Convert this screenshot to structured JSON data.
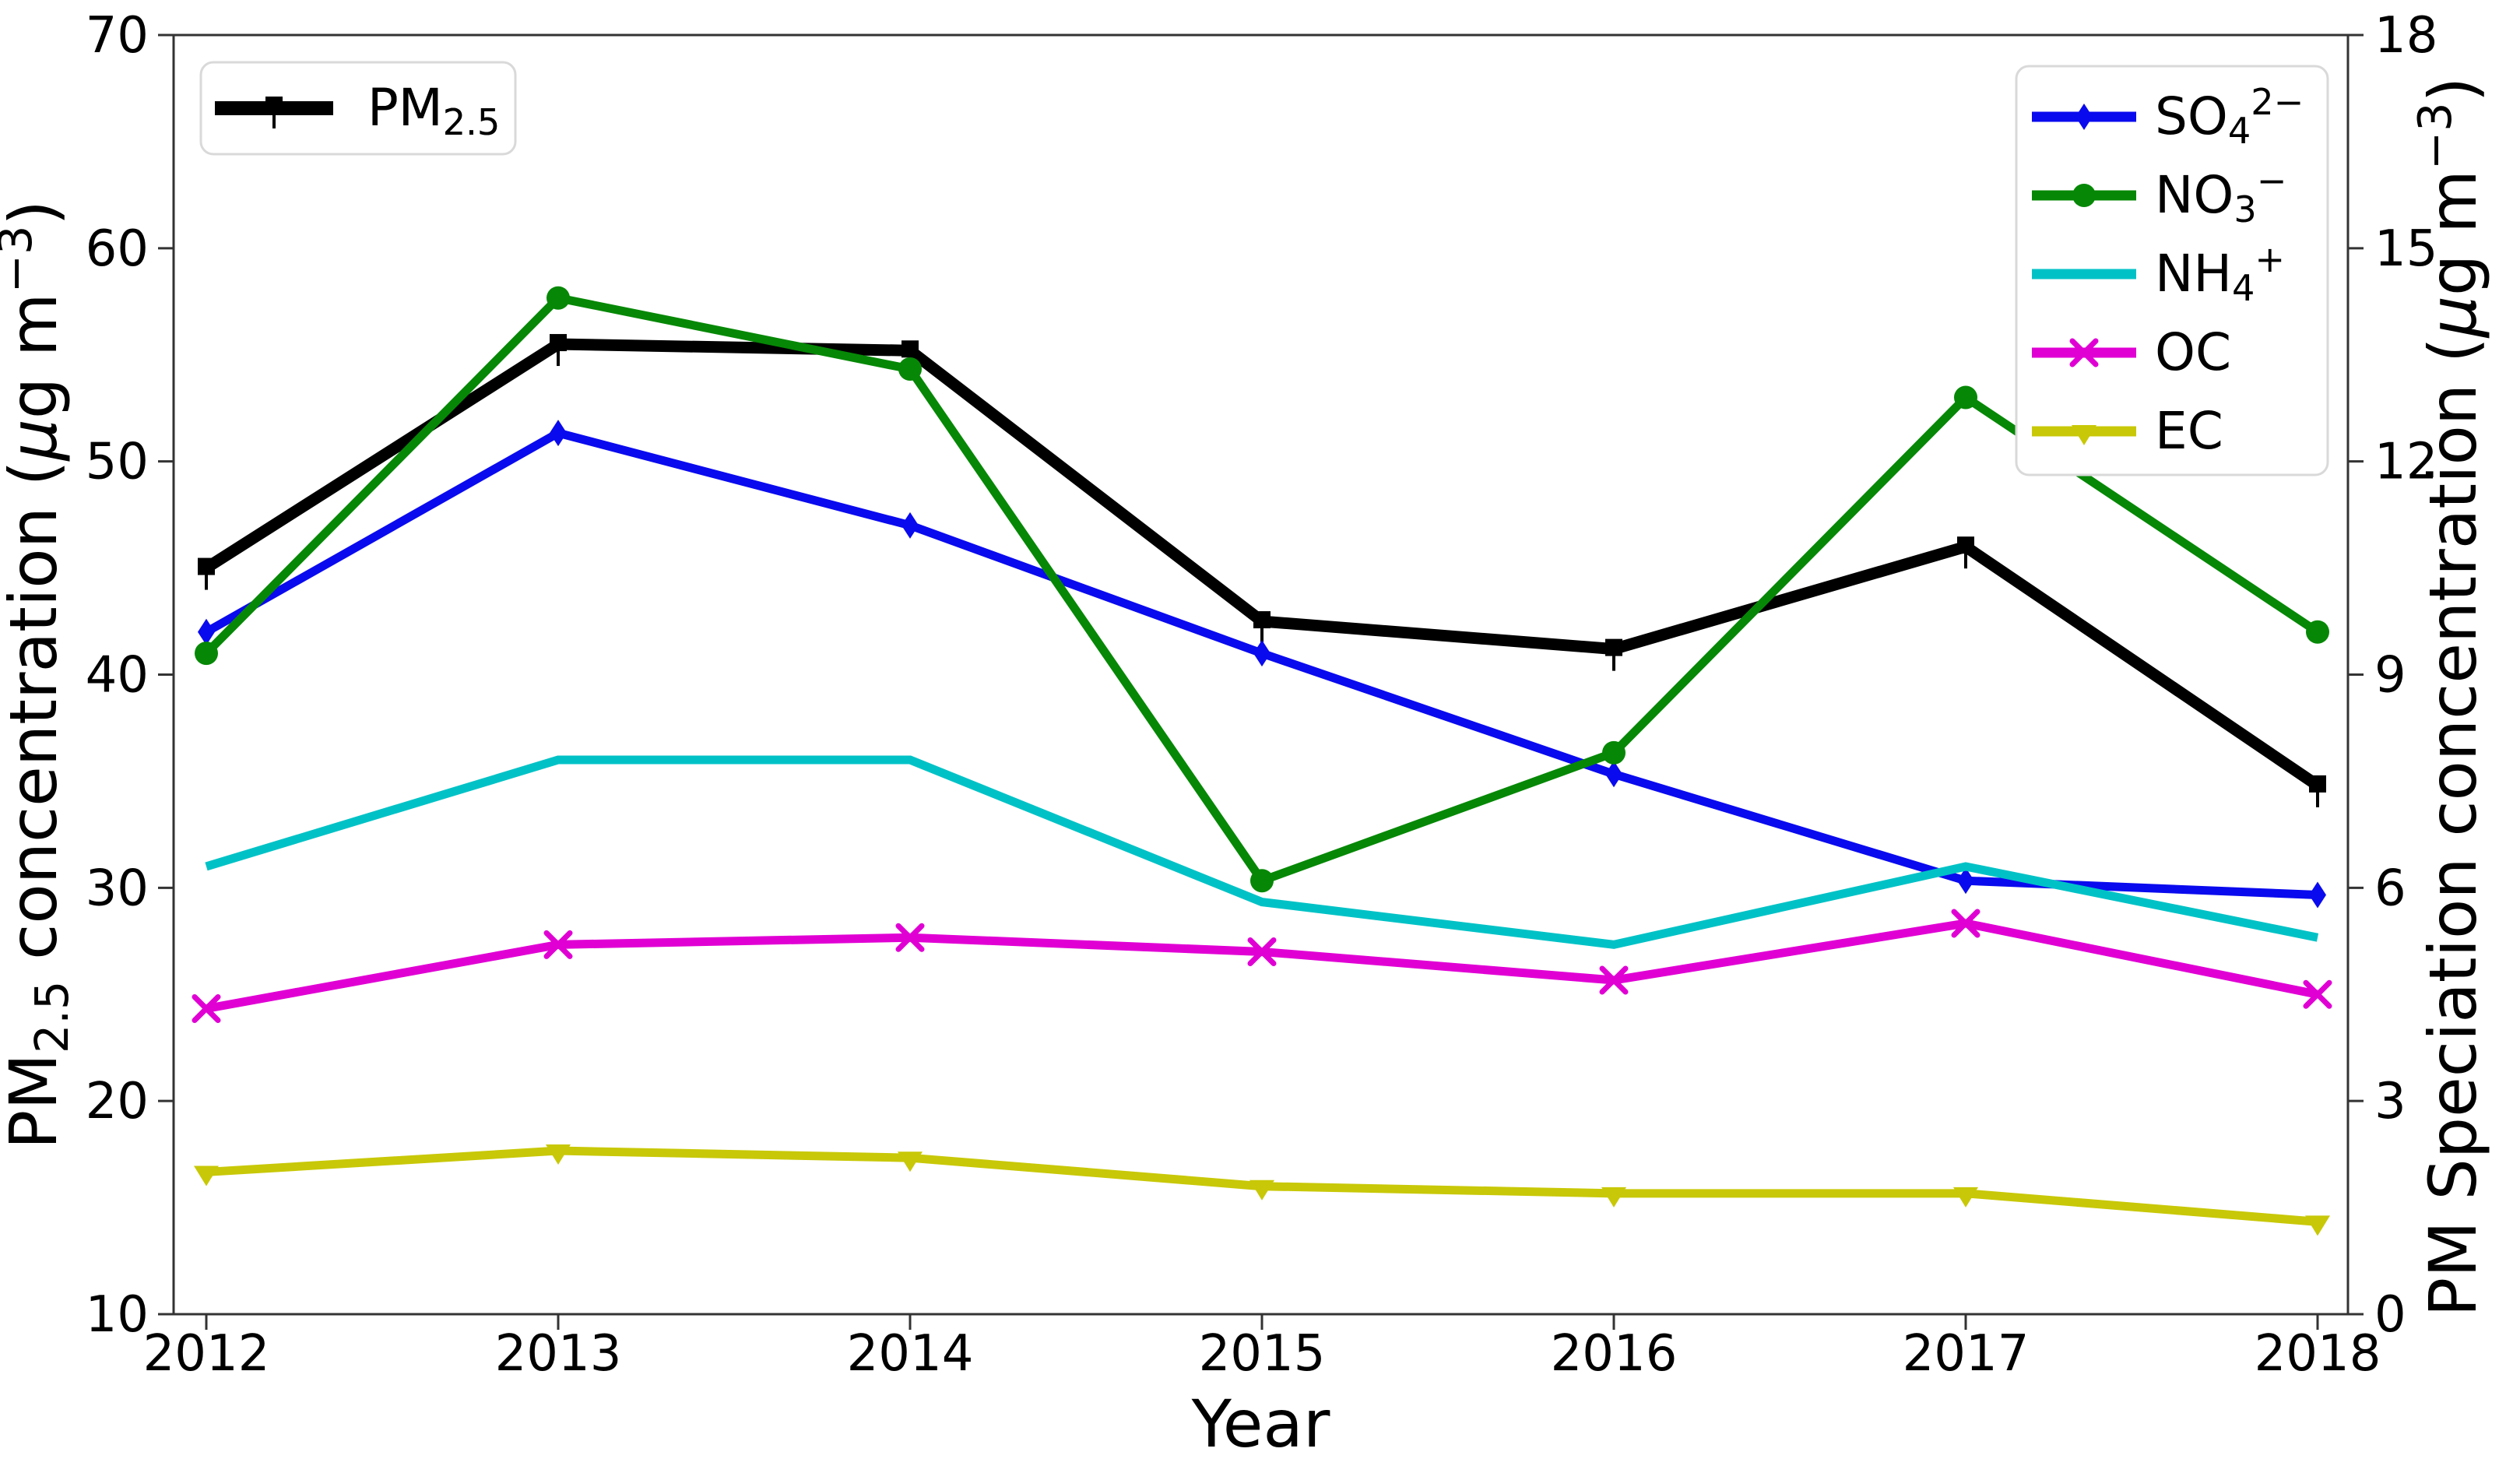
{
  "chart_data": {
    "type": "line",
    "title": "",
    "xlabel": "Year",
    "x": [
      2012,
      2013,
      2014,
      2015,
      2016,
      2017,
      2018
    ],
    "x_tick_labels": [
      "2012",
      "2013",
      "2014",
      "2015",
      "2016",
      "2017",
      "2018"
    ],
    "left_axis": {
      "label_text": "PM2.5 concentration (µg m−3)",
      "label_parts": [
        {
          "t": "PM"
        },
        {
          "t": "2.5",
          "sub": true
        },
        {
          "t": " concentration ("
        },
        {
          "t": "μ",
          "italic": true
        },
        {
          "t": "g m"
        },
        {
          "t": "−3",
          "sup": true
        },
        {
          "t": ")"
        }
      ],
      "ticks": [
        "70",
        "60",
        "50",
        "40",
        "30",
        "20",
        "10"
      ],
      "range": [
        10,
        70
      ]
    },
    "right_axis": {
      "label_text": "PM Speciation concentration (µg m−3)",
      "label_parts": [
        {
          "t": "PM Speciation concentration ("
        },
        {
          "t": "μ",
          "italic": true
        },
        {
          "t": "g m"
        },
        {
          "t": "−3",
          "sup": true
        },
        {
          "t": ")"
        }
      ],
      "ticks": [
        "18",
        "15",
        "12",
        "9",
        "6",
        "3",
        "0"
      ],
      "range": [
        0,
        18
      ]
    },
    "series": [
      {
        "id": "pm25",
        "name": "PM2.5",
        "axis": "left",
        "color": "#000000",
        "marker": "square-tick",
        "linewidth": 15,
        "label_parts": [
          {
            "t": "PM"
          },
          {
            "t": "2.5",
            "sub": true
          }
        ],
        "values": [
          45.0,
          55.5,
          55.2,
          42.5,
          41.2,
          46.0,
          34.8
        ]
      },
      {
        "id": "so4",
        "name": "SO4 2−",
        "axis": "right",
        "color": "#0a0aee",
        "marker": "diamond",
        "linewidth": 11,
        "label_parts": [
          {
            "t": "SO"
          },
          {
            "t": "4",
            "sub": true
          },
          {
            "t": "2−",
            "sup": true
          }
        ],
        "values": [
          9.6,
          12.4,
          11.1,
          9.3,
          7.6,
          6.1,
          5.9
        ]
      },
      {
        "id": "no3",
        "name": "NO3 −",
        "axis": "right",
        "color": "#068806",
        "marker": "circle",
        "linewidth": 11,
        "label_parts": [
          {
            "t": "NO"
          },
          {
            "t": "3",
            "sub": true
          },
          {
            "t": "−",
            "sup": true
          }
        ],
        "values": [
          9.3,
          14.3,
          13.3,
          6.1,
          7.9,
          12.9,
          9.6
        ]
      },
      {
        "id": "nh4",
        "name": "NH4 +",
        "axis": "right",
        "color": "#00c2c6",
        "marker": "none",
        "linewidth": 11,
        "label_parts": [
          {
            "t": "NH"
          },
          {
            "t": "4",
            "sub": true
          },
          {
            "t": "+",
            "sup": true
          }
        ],
        "values": [
          6.3,
          7.8,
          7.8,
          5.8,
          5.2,
          6.3,
          5.3
        ]
      },
      {
        "id": "oc",
        "name": "OC",
        "axis": "right",
        "color": "#e000d4",
        "marker": "x",
        "linewidth": 11,
        "label_parts": [
          {
            "t": "OC"
          }
        ],
        "values": [
          4.3,
          5.2,
          5.3,
          5.1,
          4.7,
          5.5,
          4.5
        ]
      },
      {
        "id": "ec",
        "name": "EC",
        "axis": "right",
        "color": "#c8c808",
        "marker": "tri-down",
        "linewidth": 11,
        "label_parts": [
          {
            "t": "EC"
          }
        ],
        "values": [
          2.0,
          2.3,
          2.2,
          1.8,
          1.7,
          1.7,
          1.3
        ]
      }
    ],
    "legend_pm25": {
      "entries": [
        "pm25"
      ],
      "position": "upper-left"
    },
    "legend_speciation": {
      "entries": [
        "so4",
        "no3",
        "nh4",
        "oc",
        "ec"
      ],
      "position": "upper-right"
    },
    "grid": false,
    "colors": {
      "spine": "#333333",
      "legend_border": "#d9d9d9",
      "background": "#ffffff"
    }
  }
}
